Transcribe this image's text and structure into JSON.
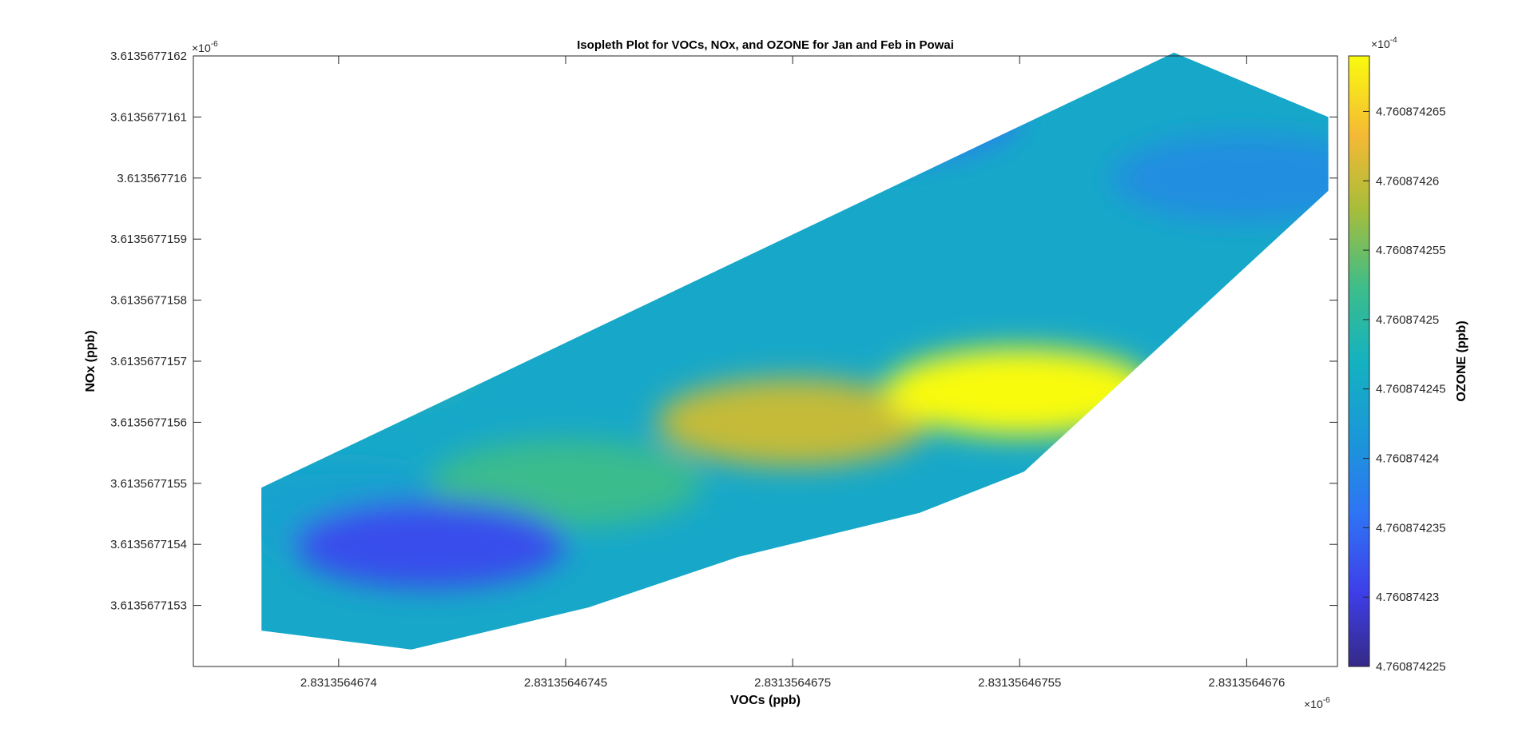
{
  "chart_data": {
    "type": "contour",
    "title": "Isopleth Plot for VOCs, NOx, and OZONE for Jan and Feb in Powai",
    "xlabel": "VOCs (ppb)",
    "ylabel": "NOx (ppb)",
    "colorbar_label": "OZONE (ppb)",
    "colormap": "parula",
    "x_exponent_base": "×10",
    "x_exponent_power": "-6",
    "y_exponent_base": "×10",
    "y_exponent_power": "-6",
    "c_exponent_base": "×10",
    "c_exponent_power": "-4",
    "xlim": [
      2.831356467368,
      2.83135646762
    ],
    "ylim": [
      3.6135677152,
      3.6135677162
    ],
    "clim": [
      4.760874225,
      4.760874269
    ],
    "x_ticks": [
      {
        "value": 2.8313564674,
        "label": "2.8313564674"
      },
      {
        "value": 2.83135646745,
        "label": "2.83135646745"
      },
      {
        "value": 2.8313564675,
        "label": "2.8313564675"
      },
      {
        "value": 2.83135646755,
        "label": "2.83135646755"
      },
      {
        "value": 2.8313564676,
        "label": "2.8313564676"
      }
    ],
    "y_ticks": [
      {
        "value": 3.6135677153,
        "label": "3.6135677153"
      },
      {
        "value": 3.6135677154,
        "label": "3.6135677154"
      },
      {
        "value": 3.6135677155,
        "label": "3.6135677155"
      },
      {
        "value": 3.6135677156,
        "label": "3.6135677156"
      },
      {
        "value": 3.6135677157,
        "label": "3.6135677157"
      },
      {
        "value": 3.6135677158,
        "label": "3.6135677158"
      },
      {
        "value": 3.6135677159,
        "label": "3.6135677159"
      },
      {
        "value": 3.613567716,
        "label": "3.613567716"
      },
      {
        "value": 3.6135677161,
        "label": "3.6135677161"
      },
      {
        "value": 3.6135677162,
        "label": "3.6135677162"
      }
    ],
    "c_ticks": [
      {
        "value": 4.760874225,
        "label": "4.760874225"
      },
      {
        "value": 4.76087423,
        "label": "4.76087423"
      },
      {
        "value": 4.760874235,
        "label": "4.760874235"
      },
      {
        "value": 4.76087424,
        "label": "4.76087424"
      },
      {
        "value": 4.760874245,
        "label": "4.760874245"
      },
      {
        "value": 4.76087425,
        "label": "4.76087425"
      },
      {
        "value": 4.760874255,
        "label": "4.760874255"
      },
      {
        "value": 4.76087426,
        "label": "4.76087426"
      },
      {
        "value": 4.760874265,
        "label": "4.760874265"
      }
    ],
    "data_domain": [
      [
        2.831356467383,
        3.6135677154928
      ],
      [
        2.831356467584,
        3.6135677162055
      ],
      [
        2.831356467618,
        3.6135677161
      ],
      [
        2.831356467618,
        3.6135677159793
      ],
      [
        2.831356467551,
        3.613567715519
      ],
      [
        2.831356467528,
        3.6135677154517
      ],
      [
        2.831356467488,
        3.6135677153793
      ],
      [
        2.831356467455,
        3.6135677152966
      ],
      [
        2.831356467416,
        3.6135677152276
      ],
      [
        2.831356467383,
        3.6135677152586
      ]
    ],
    "color_field": [
      {
        "x": 2.83135646752,
        "y": 3.6135677161,
        "c": 4.760874237
      },
      {
        "x": 2.8313564675,
        "y": 3.6135677162,
        "c": 4.760874239
      },
      {
        "x": 2.8313564674,
        "y": 3.6135677157,
        "c": 4.76087425
      },
      {
        "x": 2.8313564674,
        "y": 3.61356771546,
        "c": 4.760874244
      },
      {
        "x": 2.8313564675,
        "y": 3.6135677156,
        "c": 4.76087426
      },
      {
        "x": 2.83135646755,
        "y": 3.61356771565,
        "c": 4.760874269
      },
      {
        "x": 2.83135646745,
        "y": 3.6135677155,
        "c": 4.760874252
      },
      {
        "x": 2.8313564676,
        "y": 3.613567716,
        "c": 4.76087424
      },
      {
        "x": 2.83135646742,
        "y": 3.6135677154,
        "c": 4.760874232
      }
    ]
  }
}
